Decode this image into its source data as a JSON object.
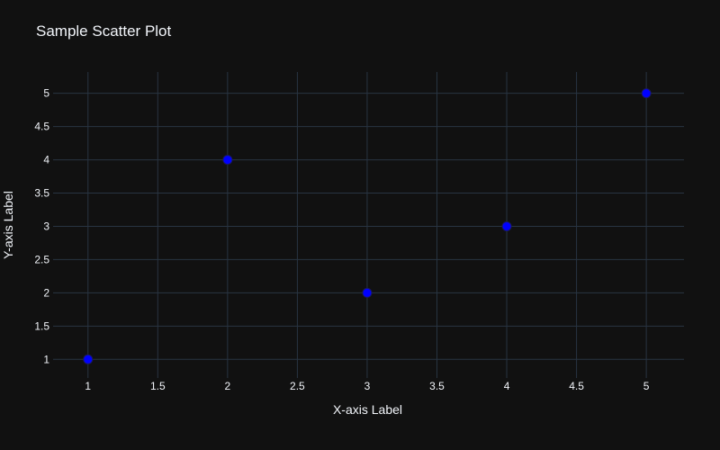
{
  "chart_data": {
    "type": "scatter",
    "title": "Sample Scatter Plot",
    "xlabel": "X-axis Label",
    "ylabel": "Y-axis Label",
    "x": [
      1,
      2,
      3,
      4,
      5
    ],
    "y": [
      1,
      4,
      2,
      3,
      5
    ],
    "xlim": [
      0.75,
      5.27
    ],
    "ylim": [
      0.72,
      5.32
    ],
    "x_ticks": [
      1,
      1.5,
      2,
      2.5,
      3,
      3.5,
      4,
      4.5,
      5
    ],
    "y_ticks": [
      1,
      1.5,
      2,
      2.5,
      3,
      3.5,
      4,
      4.5,
      5
    ],
    "grid": true,
    "legend": "none",
    "colors": {
      "background": "#111111",
      "grid": "#283442",
      "text": "#f2f5fa",
      "marker": "#0000ff"
    }
  }
}
